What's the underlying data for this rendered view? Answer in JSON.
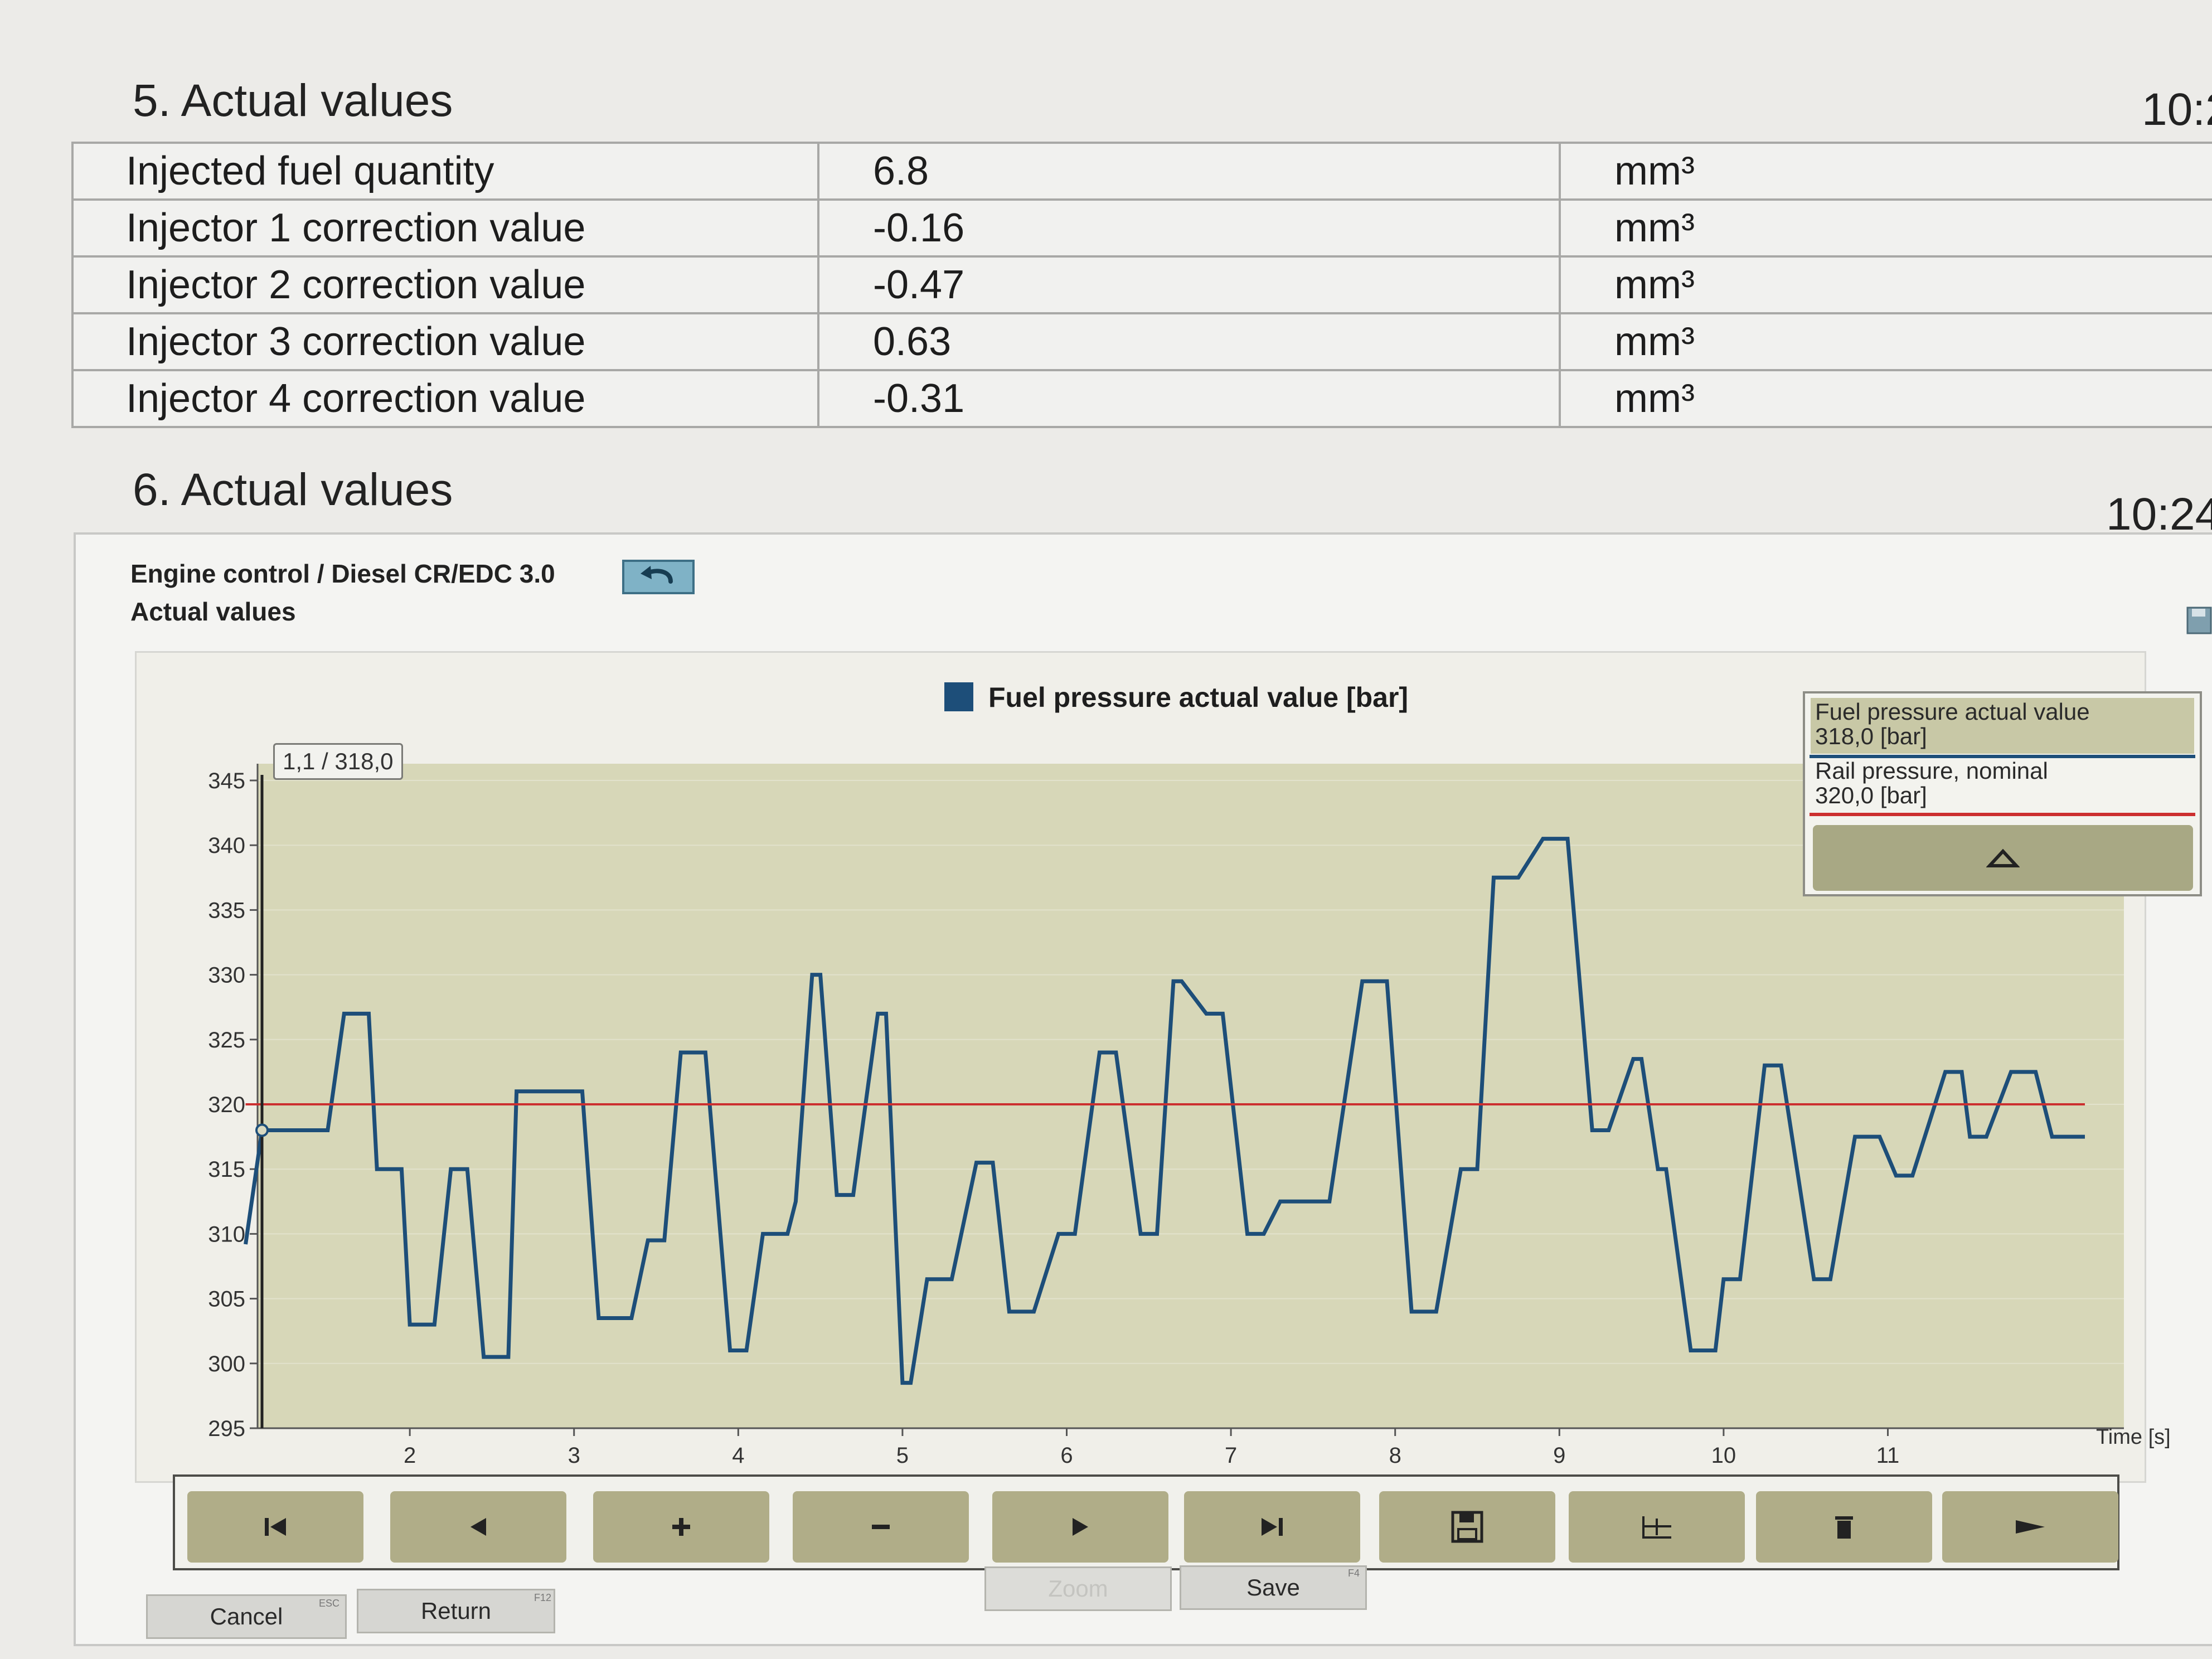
{
  "section5": {
    "title": "5.  Actual values",
    "time": "10:2",
    "rows": [
      {
        "name": "Injected fuel quantity",
        "value": "6.8",
        "unit": "mm³"
      },
      {
        "name": "Injector 1 correction value",
        "value": "-0.16",
        "unit": "mm³"
      },
      {
        "name": "Injector 2 correction value",
        "value": "-0.47",
        "unit": "mm³"
      },
      {
        "name": "Injector 3 correction value",
        "value": "0.63",
        "unit": "mm³"
      },
      {
        "name": "Injector 4 correction value",
        "value": "-0.31",
        "unit": "mm³"
      }
    ]
  },
  "section6": {
    "title": "6.  Actual values",
    "time": "10:24"
  },
  "panel": {
    "breadcrumb": "Engine control / Diesel CR/EDC 3.0",
    "subtitle": "Actual values",
    "back_icon": "return-arrow-icon",
    "side_icon": "save-icon"
  },
  "chart_data": {
    "type": "line",
    "legend": "Fuel pressure actual value [bar]",
    "xlabel": "Time [s]",
    "x_ticks": [
      "2",
      "3",
      "4",
      "5",
      "6",
      "7",
      "8",
      "9",
      "10",
      "11"
    ],
    "y_ticks": [
      "345",
      "340",
      "335",
      "330",
      "325",
      "320",
      "315",
      "310",
      "305",
      "300",
      "295"
    ],
    "xlim": [
      1.1,
      12.2
    ],
    "ylim": [
      295,
      345
    ],
    "cursor_label": "1,1 / 318,0",
    "cursor_x": 1.1,
    "series": [
      {
        "name": "Fuel pressure actual value [bar]",
        "color": "#1d4e79",
        "x": [
          1.0,
          1.1,
          1.5,
          1.6,
          1.75,
          1.8,
          1.95,
          2.0,
          2.15,
          2.25,
          2.35,
          2.45,
          2.6,
          2.65,
          2.72,
          3.05,
          3.15,
          3.35,
          3.45,
          3.55,
          3.65,
          3.8,
          3.95,
          4.05,
          4.15,
          4.3,
          4.35,
          4.45,
          4.5,
          4.6,
          4.7,
          4.85,
          4.9,
          5.0,
          5.05,
          5.15,
          5.3,
          5.45,
          5.55,
          5.65,
          5.8,
          5.95,
          6.05,
          6.2,
          6.3,
          6.45,
          6.55,
          6.65,
          6.7,
          6.85,
          6.95,
          7.1,
          7.2,
          7.3,
          7.45,
          7.6,
          7.8,
          7.95,
          8.1,
          8.25,
          8.4,
          8.5,
          8.6,
          8.75,
          8.9,
          9.05,
          9.2,
          9.3,
          9.45,
          9.5,
          9.6,
          9.65,
          9.8,
          9.95,
          10.0,
          10.1,
          10.25,
          10.35,
          10.55,
          10.65,
          10.8,
          10.95,
          11.05,
          11.15,
          11.35,
          11.45,
          11.5,
          11.6,
          11.75,
          11.9,
          12.0,
          12.1,
          12.15,
          12.2
        ],
        "y": [
          309.2,
          318.0,
          318.0,
          327.0,
          327.0,
          315.0,
          315.0,
          303.0,
          303.0,
          315.0,
          315.0,
          300.5,
          300.5,
          321.0,
          321.0,
          321.0,
          303.5,
          303.5,
          309.5,
          309.5,
          324.0,
          324.0,
          301.0,
          301.0,
          310.0,
          310.0,
          312.5,
          330.0,
          330.0,
          313.0,
          313.0,
          327.0,
          327.0,
          298.5,
          298.5,
          306.5,
          306.5,
          315.5,
          315.5,
          304.0,
          304.0,
          310.0,
          310.0,
          324.0,
          324.0,
          310.0,
          310.0,
          329.5,
          329.5,
          327.0,
          327.0,
          310.0,
          310.0,
          312.5,
          312.5,
          312.5,
          329.5,
          329.5,
          304.0,
          304.0,
          315.0,
          315.0,
          337.5,
          337.5,
          340.5,
          340.5,
          318.0,
          318.0,
          323.5,
          323.5,
          315.0,
          315.0,
          301.0,
          301.0,
          306.5,
          306.5,
          323.0,
          323.0,
          306.5,
          306.5,
          317.5,
          317.5,
          314.5,
          314.5,
          322.5,
          322.5,
          317.5,
          317.5,
          322.5,
          322.5,
          317.5,
          317.5,
          317.5,
          317.5
        ]
      },
      {
        "name": "Rail pressure, nominal",
        "color": "#cc2f2f",
        "x": [
          1.0,
          12.2
        ],
        "y": [
          320.0,
          320.0
        ]
      }
    ]
  },
  "info": {
    "row1_name": "Fuel pressure actual value",
    "row1_value": "318,0 [bar]",
    "row2_name": "Rail pressure, nominal",
    "row2_value": "320,0 [bar]",
    "up_icon": "collapse-up-icon"
  },
  "toolbar": [
    {
      "icon": "skip-to-start-icon"
    },
    {
      "icon": "step-back-icon"
    },
    {
      "icon": "zoom-in-icon"
    },
    {
      "icon": "zoom-out-icon"
    },
    {
      "icon": "play-icon"
    },
    {
      "icon": "skip-to-end-icon"
    },
    {
      "icon": "save-icon"
    },
    {
      "icon": "chart-settings-icon"
    },
    {
      "icon": "trash-icon"
    },
    {
      "icon": "next-arrow-icon"
    }
  ],
  "buttons": {
    "cancel": "Cancel",
    "cancel_key": "ESC",
    "return": "Return",
    "return_key": "F12",
    "zoom": "Zoom",
    "save": "Save",
    "save_key": "F4"
  },
  "colors": {
    "plot_bg": "#d7d7b8",
    "actual_line": "#1d4e79",
    "nominal_line": "#cc2f2f",
    "button_bg": "#b0ad88"
  }
}
